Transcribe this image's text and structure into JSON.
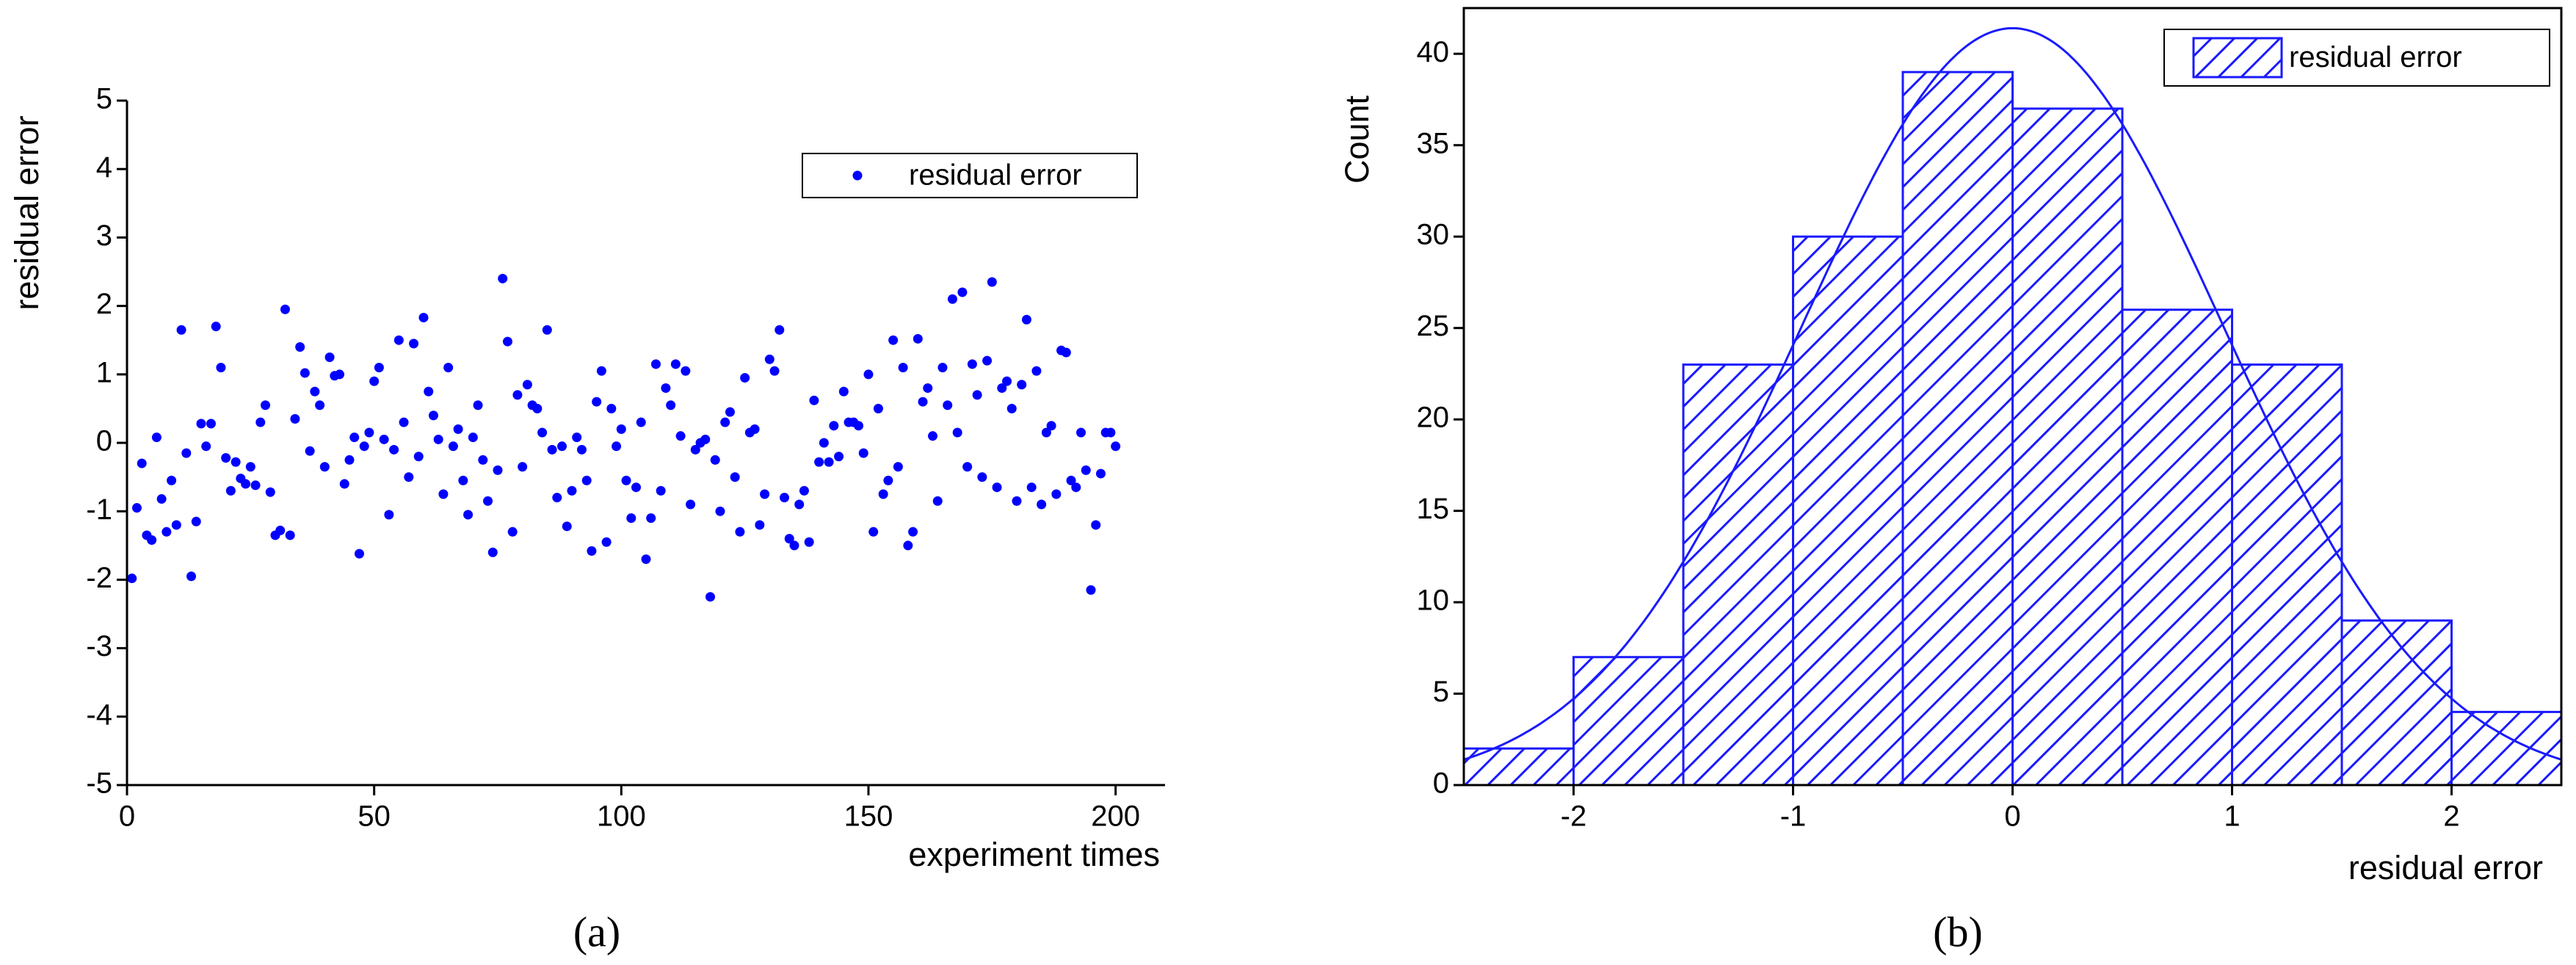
{
  "chart_data": [
    {
      "type": "scatter",
      "caption": "(a)",
      "xlabel": "experiment times",
      "ylabel": "residual error",
      "xlim": [
        0,
        210
      ],
      "ylim": [
        -5,
        5
      ],
      "xticks": [
        0,
        50,
        100,
        150,
        200
      ],
      "yticks": [
        -5,
        -4,
        -3,
        -2,
        -1,
        0,
        1,
        2,
        3,
        4,
        5
      ],
      "legend": "upper right",
      "series": [
        {
          "name": "residual error",
          "color": "#0000ff",
          "x": [
            1,
            2,
            3,
            4,
            5,
            6,
            7,
            8,
            9,
            10,
            11,
            12,
            13,
            14,
            15,
            16,
            17,
            18,
            19,
            20,
            21,
            22,
            23,
            24,
            25,
            26,
            27,
            28,
            29,
            30,
            31,
            32,
            33,
            34,
            35,
            36,
            37,
            38,
            39,
            40,
            41,
            42,
            43,
            44,
            45,
            46,
            47,
            48,
            49,
            50,
            51,
            52,
            53,
            54,
            55,
            56,
            57,
            58,
            59,
            60,
            61,
            62,
            63,
            64,
            65,
            66,
            67,
            68,
            69,
            70,
            71,
            72,
            73,
            74,
            75,
            76,
            77,
            78,
            79,
            80,
            81,
            82,
            83,
            84,
            85,
            86,
            87,
            88,
            89,
            90,
            91,
            92,
            93,
            94,
            95,
            96,
            97,
            98,
            99,
            100,
            101,
            102,
            103,
            104,
            105,
            106,
            107,
            108,
            109,
            110,
            111,
            112,
            113,
            114,
            115,
            116,
            117,
            118,
            119,
            120,
            121,
            122,
            123,
            124,
            125,
            126,
            127,
            128,
            129,
            130,
            131,
            132,
            133,
            134,
            135,
            136,
            137,
            138,
            139,
            140,
            141,
            142,
            143,
            144,
            145,
            146,
            147,
            148,
            149,
            150,
            151,
            152,
            153,
            154,
            155,
            156,
            157,
            158,
            159,
            160,
            161,
            162,
            163,
            164,
            165,
            166,
            167,
            168,
            169,
            170,
            171,
            172,
            173,
            174,
            175,
            176,
            177,
            178,
            179,
            180,
            181,
            182,
            183,
            184,
            185,
            186,
            187,
            188,
            189,
            190,
            191,
            192,
            193,
            194,
            195,
            196,
            197,
            198,
            199,
            200
          ],
          "values": [
            -1.98,
            -0.95,
            -0.3,
            -1.35,
            -1.42,
            0.08,
            -0.82,
            -1.3,
            -0.55,
            -1.2,
            1.65,
            -0.15,
            -1.95,
            -1.15,
            0.28,
            -0.05,
            0.28,
            1.7,
            1.1,
            -0.22,
            -0.7,
            -0.28,
            -0.52,
            -0.6,
            -0.35,
            -0.62,
            0.3,
            0.55,
            -0.72,
            -1.35,
            -1.28,
            1.95,
            -1.35,
            0.35,
            1.4,
            1.02,
            -0.12,
            0.75,
            0.55,
            -0.35,
            1.25,
            0.98,
            1.0,
            -0.6,
            -0.25,
            0.08,
            -1.62,
            -0.05,
            0.15,
            0.9,
            1.1,
            0.05,
            -1.05,
            -0.1,
            1.5,
            0.3,
            -0.5,
            1.45,
            -0.2,
            1.83,
            0.75,
            0.4,
            0.05,
            -0.75,
            1.1,
            -0.05,
            0.2,
            -0.55,
            -1.05,
            0.08,
            0.55,
            -0.25,
            -0.85,
            -1.6,
            -0.4,
            2.4,
            1.48,
            -1.3,
            0.7,
            -0.35,
            0.85,
            0.55,
            0.5,
            0.15,
            1.65,
            -0.1,
            -0.8,
            -0.05,
            -1.22,
            -0.7,
            0.08,
            -0.1,
            -0.55,
            -1.58,
            0.6,
            1.05,
            -1.45,
            0.5,
            -0.05,
            0.2,
            -0.55,
            -1.1,
            -0.65,
            0.3,
            -1.7,
            -1.1,
            1.15,
            -0.7,
            0.8,
            0.55,
            1.15,
            0.1,
            1.05,
            -0.9,
            -0.1,
            0.0,
            0.05,
            -2.25,
            -0.25,
            -1.0,
            0.3,
            0.45,
            -0.5,
            -1.3,
            0.95,
            0.15,
            0.2,
            -1.2,
            -0.75,
            1.22,
            1.05,
            1.65,
            -0.8,
            -1.4,
            -1.5,
            -0.9,
            -0.7,
            -1.45,
            0.62,
            -0.28,
            0.0,
            -0.28,
            0.25,
            -0.2,
            0.75,
            0.3,
            0.3,
            0.25,
            -0.15,
            1.0,
            -1.3,
            0.5,
            -0.75,
            -0.55,
            1.5,
            -0.35,
            1.1,
            -1.5,
            -1.3,
            1.52,
            0.6,
            0.8,
            0.1,
            -0.85,
            1.1,
            0.55,
            2.1,
            0.15,
            2.2,
            -0.35,
            1.15,
            0.7,
            -0.5,
            1.2,
            2.35,
            -0.65,
            0.8,
            0.9,
            0.5,
            -0.85,
            0.85,
            1.8,
            -0.65,
            1.05,
            -0.9,
            0.15,
            0.25,
            -0.75,
            1.35,
            1.32,
            -0.55,
            -0.65,
            0.15,
            -0.4,
            -2.15,
            -1.2,
            -0.45,
            0.15,
            0.15,
            -0.05
          ]
        }
      ]
    },
    {
      "type": "histogram",
      "caption": "(b)",
      "xlabel": "residual error",
      "ylabel": "Count",
      "xlim": [
        -2.5,
        2.5
      ],
      "ylim": [
        0,
        42.5
      ],
      "xticks": [
        -2,
        -1,
        0,
        1,
        2
      ],
      "yticks": [
        0,
        5,
        10,
        15,
        20,
        25,
        30,
        35,
        40
      ],
      "legend": "upper right",
      "name": "residual error",
      "color": "#1a1aff",
      "bins": [
        -2.5,
        -2,
        -1.5,
        -1,
        -0.5,
        0,
        0.5,
        1,
        1.5,
        2,
        2.5
      ],
      "counts": [
        2,
        7,
        23,
        30,
        39,
        37,
        26,
        23,
        9,
        4
      ],
      "curve": {
        "peak": 41.4,
        "mean": 0,
        "sd": 0.96
      }
    }
  ]
}
